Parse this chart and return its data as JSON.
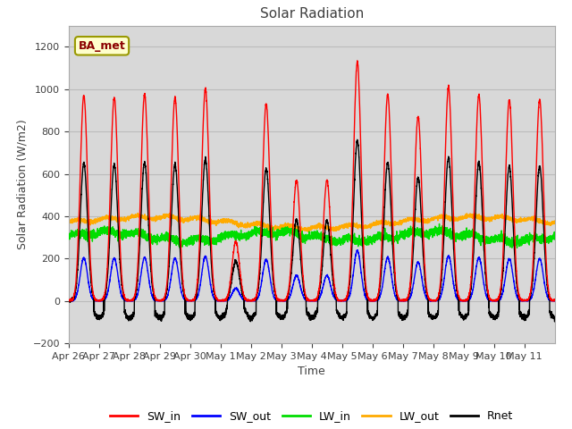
{
  "title": "Solar Radiation",
  "ylabel": "Solar Radiation (W/m2)",
  "xlabel": "Time",
  "ylim": [
    -200,
    1300
  ],
  "yticks": [
    -200,
    0,
    200,
    400,
    600,
    800,
    1000,
    1200
  ],
  "num_days": 16,
  "background_color": "#d8d8d8",
  "annotation_text": "BA_met",
  "annotation_color": "#8B0000",
  "annotation_bg": "#ffffcc",
  "annotation_edge": "#999900",
  "line_colors": {
    "SW_in": "#ff0000",
    "SW_out": "#0000ff",
    "LW_in": "#00dd00",
    "LW_out": "#ffaa00",
    "Rnet": "#000000"
  },
  "x_tick_labels": [
    "Apr 26",
    "Apr 27",
    "Apr 28",
    "Apr 29",
    "Apr 30",
    "May 1",
    "May 2",
    "May 3",
    "May 4",
    "May 5",
    "May 6",
    "May 7",
    "May 8",
    "May 9",
    "May 10",
    "May 11"
  ],
  "SW_in_peaks": [
    970,
    960,
    975,
    960,
    1000,
    280,
    930,
    570,
    570,
    1130,
    975,
    870,
    1010,
    975,
    950,
    950
  ],
  "SW_out_ratio": 0.21,
  "LW_in_base": 305,
  "LW_out_base": 370,
  "Rnet_day_ratio": 0.67,
  "Rnet_night_val": -80,
  "points_per_day": 288,
  "grid_color": "#bbbbbb",
  "title_color": "#404040",
  "tick_color": "#404040"
}
